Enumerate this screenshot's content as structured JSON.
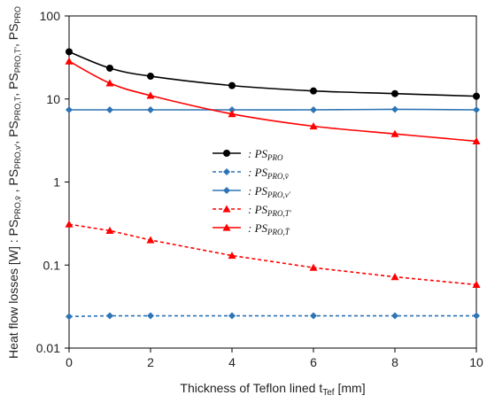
{
  "chart_data": {
    "type": "line",
    "xlabel": "Thickness of Teflon lined t_Tef [mm]",
    "ylabel": "Heat flow losses [W] : PS_PRO,v̄ , PS_PRO,v′, PS_PRO,T, PS_PRO,T′, PS_PRO",
    "xlim": [
      0,
      10
    ],
    "ylim": [
      0.01,
      100
    ],
    "yscale": "log",
    "xticks": [
      0,
      2,
      4,
      6,
      8,
      10
    ],
    "yticks": [
      0.01,
      0.1,
      1,
      10,
      100
    ],
    "ytick_labels": [
      "0.01",
      "0.1",
      "1",
      "10",
      "100"
    ],
    "grid": false,
    "legend_position": "center",
    "series": [
      {
        "name": "PS_PRO",
        "legend_label": ": PS_PRO",
        "color": "#000000",
        "marker": "circle",
        "line_style": "solid",
        "x": [
          0,
          1,
          2,
          4,
          6,
          8,
          10
        ],
        "y": [
          37,
          23.5,
          18.8,
          14.5,
          12.5,
          11.6,
          10.8
        ]
      },
      {
        "name": "PS_PRO,v̄",
        "legend_label": ": PS_PRO,v̄",
        "color": "#2e75b6",
        "marker": "diamond",
        "line_style": "dashed",
        "x": [
          0,
          1,
          2,
          4,
          6,
          8,
          10
        ],
        "y": [
          0.024,
          0.0245,
          0.0245,
          0.0245,
          0.0245,
          0.0245,
          0.0245
        ]
      },
      {
        "name": "PS_PRO,v′",
        "legend_label": ": PS_PRO,v′",
        "color": "#2e75b6",
        "marker": "diamond",
        "line_style": "solid",
        "x": [
          0,
          1,
          2,
          4,
          6,
          8,
          10
        ],
        "y": [
          7.4,
          7.4,
          7.4,
          7.4,
          7.4,
          7.5,
          7.4
        ]
      },
      {
        "name": "PS_PRO,T′",
        "legend_label": ": PS_PRO,T′",
        "color": "#ff0000",
        "marker": "triangle",
        "line_style": "dashed",
        "x": [
          0,
          1,
          2,
          4,
          6,
          8,
          10
        ],
        "y": [
          0.31,
          0.26,
          0.2,
          0.13,
          0.093,
          0.072,
          0.058
        ]
      },
      {
        "name": "PS_PRO,T̄",
        "legend_label": ": PS_PRO,T̄",
        "color": "#ff0000",
        "marker": "triangle",
        "line_style": "solid",
        "x": [
          0,
          1,
          2,
          4,
          6,
          8,
          10
        ],
        "y": [
          28.5,
          15.5,
          11,
          6.6,
          4.7,
          3.8,
          3.1
        ]
      }
    ]
  }
}
